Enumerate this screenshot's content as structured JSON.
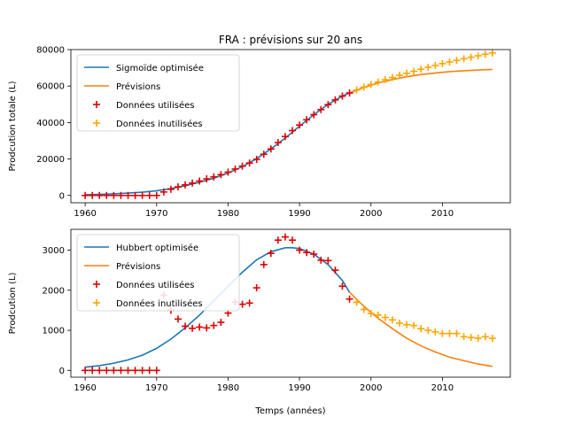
{
  "figure_title": "FRA : prévisions sur 20 ans",
  "chart_data": [
    {
      "type": "line",
      "title": "",
      "xlabel": "",
      "ylabel": "Prodcution totale (L)",
      "xlim": [
        1958,
        2019.5
      ],
      "ylim": [
        -4000,
        80000
      ],
      "xticks": [
        1960,
        1970,
        1980,
        1990,
        2000,
        2010
      ],
      "yticks": [
        0,
        20000,
        40000,
        60000,
        80000
      ],
      "legend_position": "top-left",
      "series": [
        {
          "name": "Sigmoïde optimisée",
          "style": "line",
          "color": "#1f77b4",
          "x": [
            1960,
            1962,
            1964,
            1966,
            1968,
            1970,
            1972,
            1974,
            1976,
            1978,
            1980,
            1982,
            1984,
            1986,
            1988,
            1990,
            1992,
            1994,
            1996,
            1997
          ],
          "y": [
            400,
            600,
            900,
            1300,
            1800,
            2600,
            3800,
            5300,
            7200,
            9500,
            12300,
            15800,
            20200,
            25500,
            31500,
            38000,
            44300,
            50000,
            54500,
            56200
          ]
        },
        {
          "name": "Prévisions",
          "style": "line",
          "color": "#ff7f0e",
          "x": [
            1997,
            1999,
            2001,
            2003,
            2005,
            2007,
            2009,
            2011,
            2013,
            2015,
            2017
          ],
          "y": [
            56200,
            59200,
            61700,
            63600,
            65100,
            66300,
            67200,
            67900,
            68400,
            68800,
            69100
          ]
        },
        {
          "name": "Données utilisées",
          "style": "marker",
          "color": "#e00000",
          "x": [
            1960,
            1961,
            1962,
            1963,
            1964,
            1965,
            1966,
            1967,
            1968,
            1969,
            1970,
            1971,
            1972,
            1973,
            1974,
            1975,
            1976,
            1977,
            1978,
            1979,
            1980,
            1981,
            1982,
            1983,
            1984,
            1985,
            1986,
            1987,
            1988,
            1989,
            1990,
            1991,
            1992,
            1993,
            1994,
            1995,
            1996,
            1997
          ],
          "y": [
            0,
            0,
            0,
            0,
            0,
            0,
            0,
            0,
            0,
            0,
            0,
            1900,
            3400,
            4700,
            5800,
            6800,
            7900,
            9100,
            10200,
            11400,
            12800,
            14500,
            16100,
            17800,
            19800,
            22600,
            25500,
            29000,
            32300,
            35600,
            38600,
            41500,
            44300,
            47100,
            49800,
            52400,
            54500,
            56200
          ]
        },
        {
          "name": "Données inutilisées",
          "style": "marker",
          "color": "#ffa500",
          "x": [
            1998,
            1999,
            2000,
            2001,
            2002,
            2003,
            2004,
            2005,
            2006,
            2007,
            2008,
            2009,
            2010,
            2011,
            2012,
            2013,
            2014,
            2015,
            2016,
            2017
          ],
          "y": [
            57900,
            59400,
            60800,
            62200,
            63500,
            64700,
            65900,
            67000,
            68100,
            69200,
            70300,
            71300,
            72300,
            73200,
            74100,
            75000,
            75800,
            76600,
            77400,
            78100
          ]
        }
      ]
    },
    {
      "type": "line",
      "title": "",
      "xlabel": "Temps (années)",
      "ylabel": "Prodcution (L)",
      "xlim": [
        1958,
        2019.5
      ],
      "ylim": [
        -170,
        3520
      ],
      "xticks": [
        1960,
        1970,
        1980,
        1990,
        2000,
        2010
      ],
      "yticks": [
        0,
        1000,
        2000,
        3000
      ],
      "legend_position": "top-left",
      "series": [
        {
          "name": "Hubbert optimisée",
          "style": "line",
          "color": "#1f77b4",
          "x": [
            1960,
            1962,
            1964,
            1966,
            1968,
            1970,
            1972,
            1974,
            1976,
            1978,
            1980,
            1982,
            1984,
            1986,
            1988,
            1989,
            1990,
            1992,
            1994,
            1996,
            1997
          ],
          "y": [
            80,
            120,
            180,
            260,
            380,
            550,
            780,
            1060,
            1380,
            1740,
            2100,
            2450,
            2760,
            2960,
            3060,
            3060,
            3040,
            2900,
            2640,
            2240,
            1950
          ]
        },
        {
          "name": "Prévisions",
          "style": "line",
          "color": "#ff7f0e",
          "x": [
            1997,
            1999,
            2001,
            2003,
            2005,
            2007,
            2009,
            2011,
            2013,
            2015,
            2017
          ],
          "y": [
            1950,
            1600,
            1300,
            1040,
            800,
            610,
            460,
            330,
            240,
            160,
            100
          ]
        },
        {
          "name": "Données utilisées",
          "style": "marker",
          "color": "#e00000",
          "x": [
            1960,
            1961,
            1962,
            1963,
            1964,
            1965,
            1966,
            1967,
            1968,
            1969,
            1970,
            1971,
            1972,
            1973,
            1974,
            1975,
            1976,
            1977,
            1978,
            1979,
            1980,
            1981,
            1982,
            1983,
            1984,
            1985,
            1986,
            1987,
            1988,
            1989,
            1990,
            1991,
            1992,
            1993,
            1994,
            1995,
            1996,
            1997
          ],
          "y": [
            0,
            0,
            0,
            0,
            0,
            0,
            0,
            0,
            0,
            0,
            0,
            1880,
            1500,
            1280,
            1100,
            1050,
            1080,
            1060,
            1120,
            1200,
            1430,
            1700,
            1650,
            1680,
            2060,
            2640,
            2920,
            3250,
            3330,
            3250,
            3000,
            2940,
            2900,
            2750,
            2740,
            2500,
            2100,
            1780
          ]
        },
        {
          "name": "Données inutilisées",
          "style": "marker",
          "color": "#ffa500",
          "x": [
            1998,
            1999,
            2000,
            2001,
            2002,
            2003,
            2004,
            2005,
            2006,
            2007,
            2008,
            2009,
            2010,
            2011,
            2012,
            2013,
            2014,
            2015,
            2016,
            2017
          ],
          "y": [
            1700,
            1520,
            1420,
            1380,
            1320,
            1260,
            1180,
            1140,
            1120,
            1040,
            1000,
            960,
            920,
            920,
            920,
            840,
            820,
            800,
            840,
            800
          ]
        }
      ]
    }
  ]
}
